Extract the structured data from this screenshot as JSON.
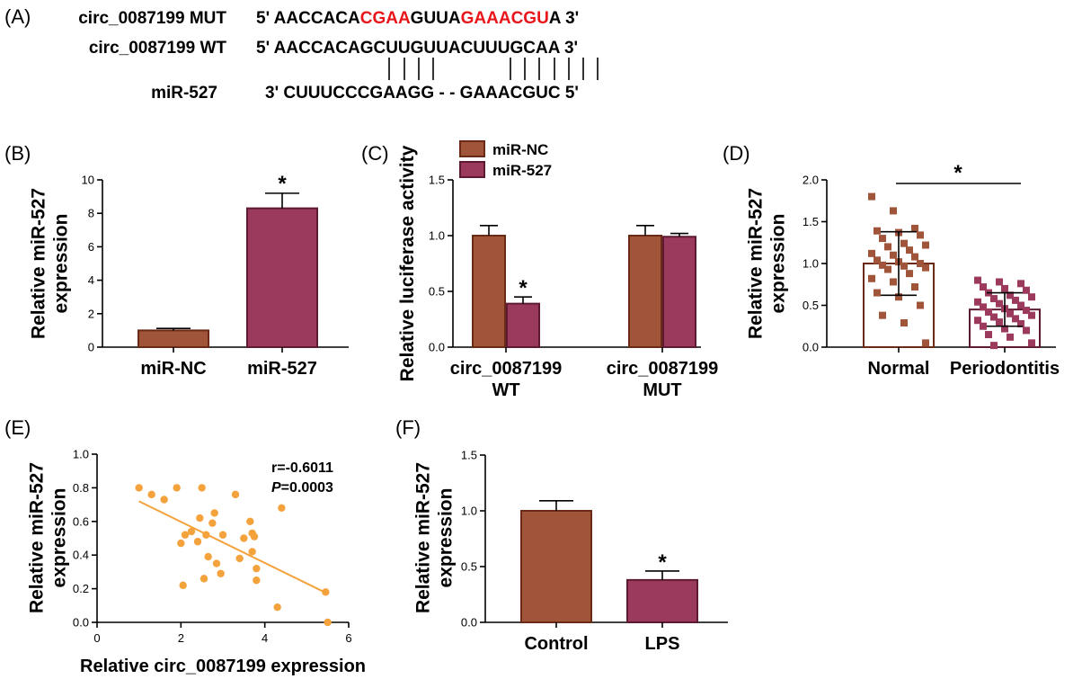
{
  "panels": {
    "A": {
      "label": "(A)"
    },
    "B": {
      "label": "(B)"
    },
    "C": {
      "label": "(C)"
    },
    "D": {
      "label": "(D)"
    },
    "E": {
      "label": "(E)"
    },
    "F": {
      "label": "(F)"
    }
  },
  "sequences": {
    "mut_name": "circ_0087199 MUT",
    "mut_parts": [
      {
        "text": "5' AACCACA",
        "red": false
      },
      {
        "text": "CGAA",
        "red": true
      },
      {
        "text": "GUUA",
        "red": false
      },
      {
        "text": "GAAACGU",
        "red": true
      },
      {
        "text": "A 3'",
        "red": false
      }
    ],
    "wt_name": "circ_0087199 WT",
    "wt_seq": "5' AACCACAGCUUGUUACUUUGCAA 3'",
    "mir_name": "miR-527",
    "mir_seq": "3' CUUUCCCGAAGG - - GAAACGUC 5'"
  },
  "colors": {
    "nc_fill": "#a0553a",
    "nc_stroke": "#6b2a16",
    "mir_fill": "#9c3a5e",
    "mir_stroke": "#5e1a33",
    "normal_pt": "#a0553a",
    "perio_pt": "#9c3a5e",
    "scatter_pt": "#f4a23c",
    "scatter_line": "#f4a23c",
    "seq_red": "#e8161b"
  },
  "chart_data": [
    {
      "panel": "B",
      "type": "bar",
      "categories": [
        "miR-NC",
        "miR-527"
      ],
      "values": [
        1.0,
        8.3
      ],
      "errors": [
        0.12,
        0.9
      ],
      "ylabel": "Relative miR-527\nexpression",
      "ylim": [
        0,
        10
      ],
      "yticks": [
        "0",
        "2",
        "4",
        "6",
        "8",
        "10"
      ],
      "annotations": [
        {
          "text": "*",
          "category": "miR-527"
        }
      ]
    },
    {
      "panel": "C",
      "type": "bar",
      "categories": [
        "circ_0087199\nWT",
        "circ_0087199\nMUT"
      ],
      "series": [
        {
          "name": "miR-NC",
          "values": [
            1.0,
            1.0
          ],
          "errors": [
            0.09,
            0.09
          ]
        },
        {
          "name": "miR-527",
          "values": [
            0.39,
            0.99
          ],
          "errors": [
            0.06,
            0.03
          ]
        }
      ],
      "ylabel": "Relative luciferase activity",
      "ylim": [
        0,
        1.5
      ],
      "yticks": [
        "0.0",
        "0.5",
        "1.0",
        "1.5"
      ],
      "legend": "top-left",
      "annotations": [
        {
          "text": "*",
          "category": "circ_0087199\nWT",
          "series": "miR-527"
        }
      ]
    },
    {
      "panel": "D",
      "type": "bar",
      "categories": [
        "Normal",
        "Periodontitis"
      ],
      "values": [
        1.0,
        0.45
      ],
      "errors": [
        0.38,
        0.2
      ],
      "ylabel": "Relative miR-527\nexpression",
      "ylim": [
        0,
        2.0
      ],
      "yticks": [
        "0.0",
        "0.5",
        "1.0",
        "1.5",
        "2.0"
      ],
      "points": {
        "Normal": [
          1.8,
          1.63,
          1.42,
          1.39,
          1.37,
          1.34,
          1.3,
          1.24,
          1.22,
          1.2,
          1.16,
          1.12,
          1.1,
          1.08,
          1.04,
          1.02,
          1.0,
          0.98,
          0.97,
          0.95,
          0.93,
          0.88,
          0.82,
          0.78,
          0.72,
          0.65,
          0.6,
          0.5,
          0.38,
          0.29,
          0.05
        ],
        "Periodontitis": [
          0.8,
          0.78,
          0.76,
          0.72,
          0.7,
          0.68,
          0.65,
          0.62,
          0.6,
          0.58,
          0.56,
          0.54,
          0.52,
          0.5,
          0.48,
          0.46,
          0.44,
          0.42,
          0.4,
          0.38,
          0.36,
          0.34,
          0.32,
          0.3,
          0.28,
          0.25,
          0.22,
          0.2,
          0.15,
          0.12,
          0.05,
          0.02
        ]
      },
      "annotations": [
        {
          "text": "*",
          "between": [
            "Normal",
            "Periodontitis"
          ]
        }
      ]
    },
    {
      "panel": "E",
      "type": "scatter",
      "xlabel": "Relative circ_0087199 expression",
      "ylabel": "Relative miR-527\nexpression",
      "xlim": [
        0,
        6
      ],
      "ylim": [
        0,
        1.0
      ],
      "xticks": [
        "0",
        "2",
        "4",
        "6"
      ],
      "yticks": [
        "0.0",
        "0.2",
        "0.4",
        "0.6",
        "0.8",
        "1.0"
      ],
      "points": [
        [
          1.0,
          0.8
        ],
        [
          1.3,
          0.76
        ],
        [
          1.6,
          0.73
        ],
        [
          1.9,
          0.8
        ],
        [
          2.0,
          0.47
        ],
        [
          2.05,
          0.22
        ],
        [
          2.1,
          0.52
        ],
        [
          2.25,
          0.54
        ],
        [
          2.4,
          0.48
        ],
        [
          2.45,
          0.62
        ],
        [
          2.5,
          0.8
        ],
        [
          2.55,
          0.26
        ],
        [
          2.6,
          0.52
        ],
        [
          2.65,
          0.39
        ],
        [
          2.75,
          0.59
        ],
        [
          2.8,
          0.65
        ],
        [
          2.85,
          0.35
        ],
        [
          2.95,
          0.29
        ],
        [
          3.0,
          0.52
        ],
        [
          3.3,
          0.76
        ],
        [
          3.4,
          0.38
        ],
        [
          3.5,
          0.5
        ],
        [
          3.65,
          0.6
        ],
        [
          3.7,
          0.53
        ],
        [
          3.7,
          0.42
        ],
        [
          3.75,
          0.51
        ],
        [
          3.8,
          0.25
        ],
        [
          3.8,
          0.32
        ],
        [
          4.3,
          0.09
        ],
        [
          4.4,
          0.68
        ],
        [
          5.45,
          0.18
        ],
        [
          5.5,
          0.0
        ]
      ],
      "fit": [
        [
          1.0,
          0.72
        ],
        [
          5.5,
          0.17
        ]
      ],
      "stats": {
        "r_text": "r=-0.6011",
        "p_label": "P",
        "p_value": "=0.0003"
      }
    },
    {
      "panel": "F",
      "type": "bar",
      "categories": [
        "Control",
        "LPS"
      ],
      "values": [
        1.0,
        0.38
      ],
      "errors": [
        0.09,
        0.08
      ],
      "ylabel": "Relative miR-527\nexpression",
      "ylim": [
        0,
        1.5
      ],
      "yticks": [
        "0.0",
        "0.5",
        "1.0",
        "1.5"
      ],
      "annotations": [
        {
          "text": "*",
          "category": "LPS"
        }
      ]
    }
  ]
}
